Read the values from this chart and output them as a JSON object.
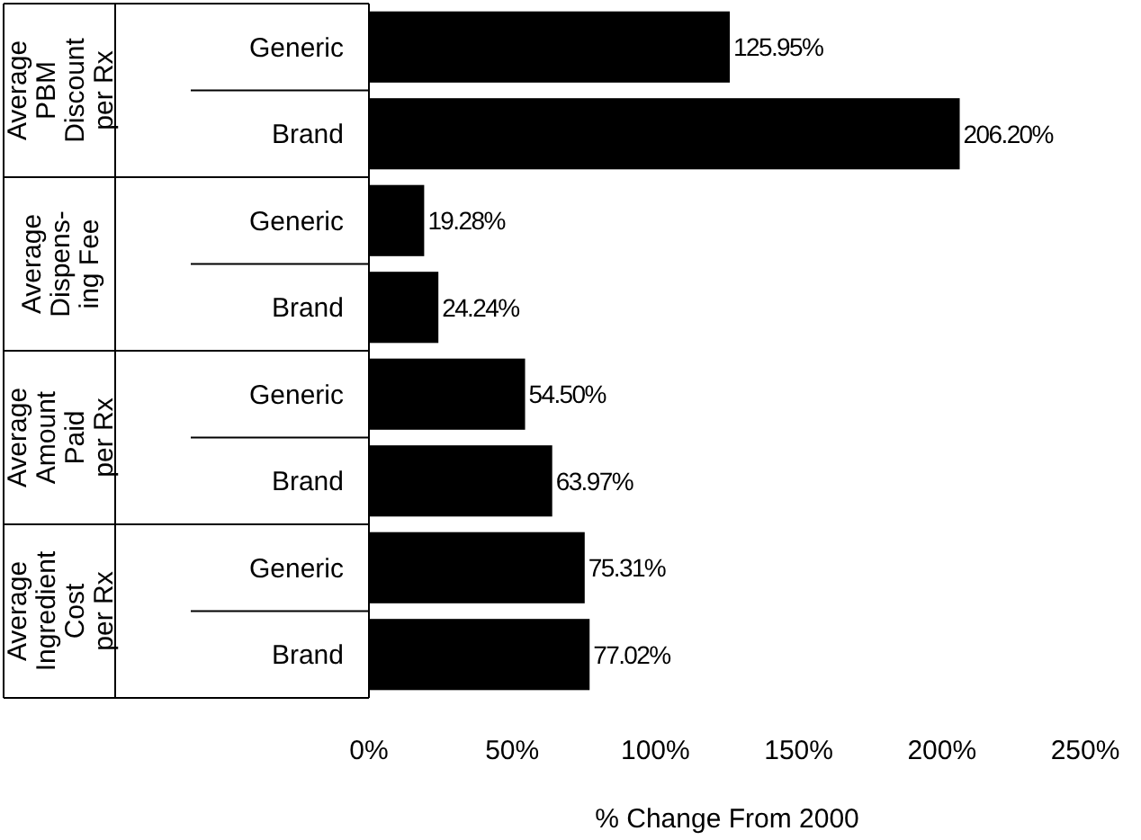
{
  "chart_data": {
    "type": "bar",
    "orientation": "horizontal",
    "xlabel": "% Change From 2000",
    "categories": [
      "Generic",
      "Brand",
      "Generic",
      "Brand",
      "Generic",
      "Brand",
      "Generic",
      "Brand"
    ],
    "values": [
      125.95,
      206.2,
      19.28,
      24.24,
      54.5,
      63.97,
      75.31,
      77.02
    ],
    "value_labels": [
      "125.95%",
      "206.20%",
      "19.28%",
      "24.24%",
      "54.50%",
      "63.97%",
      "75.31%",
      "77.02%"
    ],
    "color": "#000000",
    "xlim": [
      0,
      250
    ],
    "xticks": [
      {
        "value": 0,
        "label": "0%"
      },
      {
        "value": 50,
        "label": "50%"
      },
      {
        "value": 100,
        "label": "100%"
      },
      {
        "value": 150,
        "label": "150%"
      },
      {
        "value": 200,
        "label": "200%"
      },
      {
        "value": 250,
        "label": "250%"
      }
    ],
    "annotations": [
      "Average\nPBM\nDiscount\nper Rx",
      "Average\nDispens-\ning Fee",
      "Average\nAmount\nPaid\nper Rx",
      "Average\nIngredient\nCost\nper Rx"
    ]
  }
}
